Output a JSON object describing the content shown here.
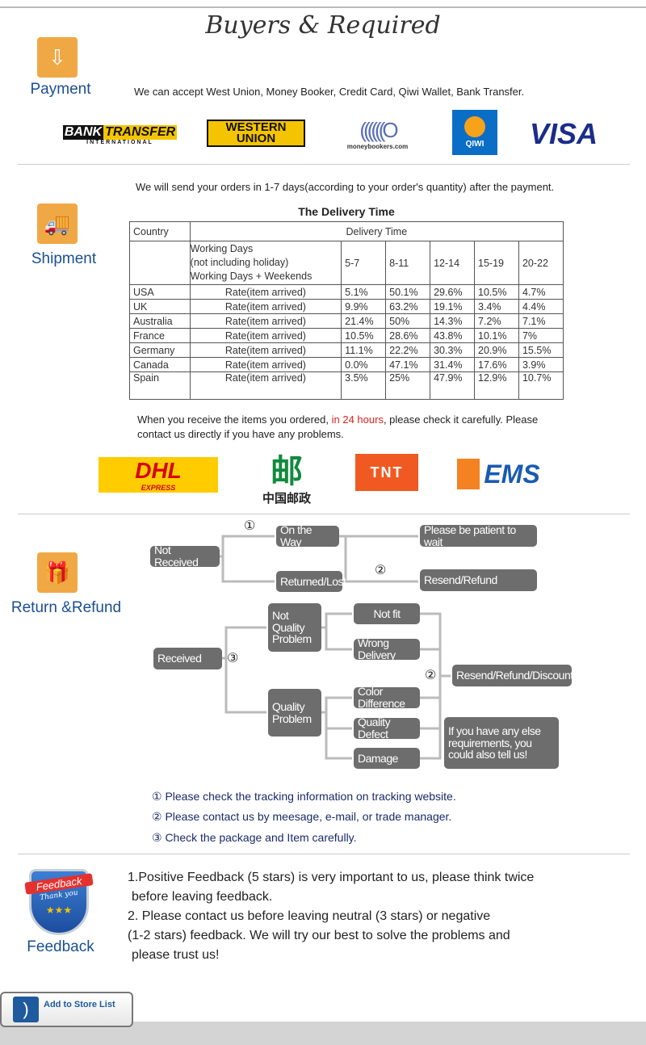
{
  "title": "Buyers & Required",
  "payment": {
    "label": "Payment",
    "icon": "download-tray-icon",
    "text": "We can accept West Union, Money Booker, Credit Card, Qiwi Wallet, Bank Transfer.",
    "logos": {
      "bank_transfer": "BANK TRANSFER",
      "bank_transfer_sub": "INTERNATIONAL",
      "western_union": "WESTERN UNION",
      "moneybookers": "moneybookers.com",
      "qiwi": "QIWI",
      "visa": "VISA"
    }
  },
  "shipment": {
    "label": "Shipment",
    "icon": "truck-icon",
    "intro": "We will send your orders in 1-7 days(according to your order's quantity) after the payment.",
    "table_title": "The Delivery Time",
    "header": {
      "country": "Country",
      "delivery_time": "Delivery Time",
      "working_days": [
        "Working Days",
        "(not including holiday)",
        "Working Days + Weekends"
      ],
      "ranges": [
        "5-7",
        "8-11",
        "12-14",
        "15-19",
        "20-22"
      ]
    },
    "rows": [
      {
        "country": "USA",
        "label": "Rate(item arrived)",
        "values": [
          "5.1%",
          "50.1%",
          "29.6%",
          "10.5%",
          "4.7%"
        ]
      },
      {
        "country": "UK",
        "label": "Rate(item arrived)",
        "values": [
          "9.9%",
          "63.2%",
          "19.1%",
          "3.4%",
          "4.4%"
        ]
      },
      {
        "country": "Australia",
        "label": "Rate(item arrived)",
        "values": [
          "21.4%",
          "50%",
          "14.3%",
          "7.2%",
          "7.1%"
        ]
      },
      {
        "country": "France",
        "label": "Rate(item arrived)",
        "values": [
          "10.5%",
          "28.6%",
          "43.8%",
          "10.1%",
          "7%"
        ]
      },
      {
        "country": "Germany",
        "label": "Rate(item arrived)",
        "values": [
          "11.1%",
          "22.2%",
          "30.3%",
          "20.9%",
          "15.5%"
        ]
      },
      {
        "country": "Canada",
        "label": "Rate(item arrived)",
        "values": [
          "0.0%",
          "47.1%",
          "31.4%",
          "17.6%",
          "3.9%"
        ]
      },
      {
        "country": "Spain",
        "label": "Rate(item arrived)",
        "values": [
          "3.5%",
          "25%",
          "47.9%",
          "12.9%",
          "10.7%"
        ]
      }
    ],
    "receive_pre": "When you receive the items you ordered, ",
    "receive_red": "in 24 hours",
    "receive_post": ", please check it carefully. Please contact us directly if you have any problems.",
    "carriers": {
      "dhl": "DHL",
      "dhl_sub": "EXPRESS",
      "china_post": "中国邮政",
      "tnt": "TNT",
      "ems": "EMS"
    }
  },
  "refund": {
    "label": "Return &Refund",
    "icon": "gift-box-icon",
    "nodes": {
      "not_received": "Not Received",
      "on_the_way": "On the Way",
      "returned_lost": "Returned/Lost",
      "patient": "Please be patient to wait",
      "resend_refund": "Resend/Refund",
      "received": "Received",
      "not_quality": "Not Quality Problem",
      "quality": "Quality Problem",
      "not_fit": "Not fit",
      "wrong_delivery": "Wrong Delivery",
      "color_diff": "Color Difference",
      "quality_defect": "Quality Defect",
      "damage": "Damage",
      "resend_refund_discount": "Resend/Refund/Discount",
      "else": "If you have any else requirements, you could also tell us!"
    },
    "marks": {
      "one": "①",
      "two": "②",
      "three": "③"
    },
    "notes": [
      "① Please check the tracking information on tracking website.",
      "② Please contact us by meesage, e-mail, or trade manager.",
      "③ Check the package and Item carefully."
    ]
  },
  "feedback": {
    "label": "Feedback",
    "badge_text": "Feedback",
    "badge_sub": "Thank you",
    "lines": [
      "1.Positive Feedback (5 stars) is very important to us, please think twice",
      "before leaving feedback.",
      "2. Please contact us before leaving neutral (3 stars) or negative",
      "(1-2 stars) feedback. We will try our best to solve the problems and",
      "please trust us!"
    ]
  },
  "store_button": {
    "label": "Add to Store List",
    "icon": "rss-icon"
  }
}
